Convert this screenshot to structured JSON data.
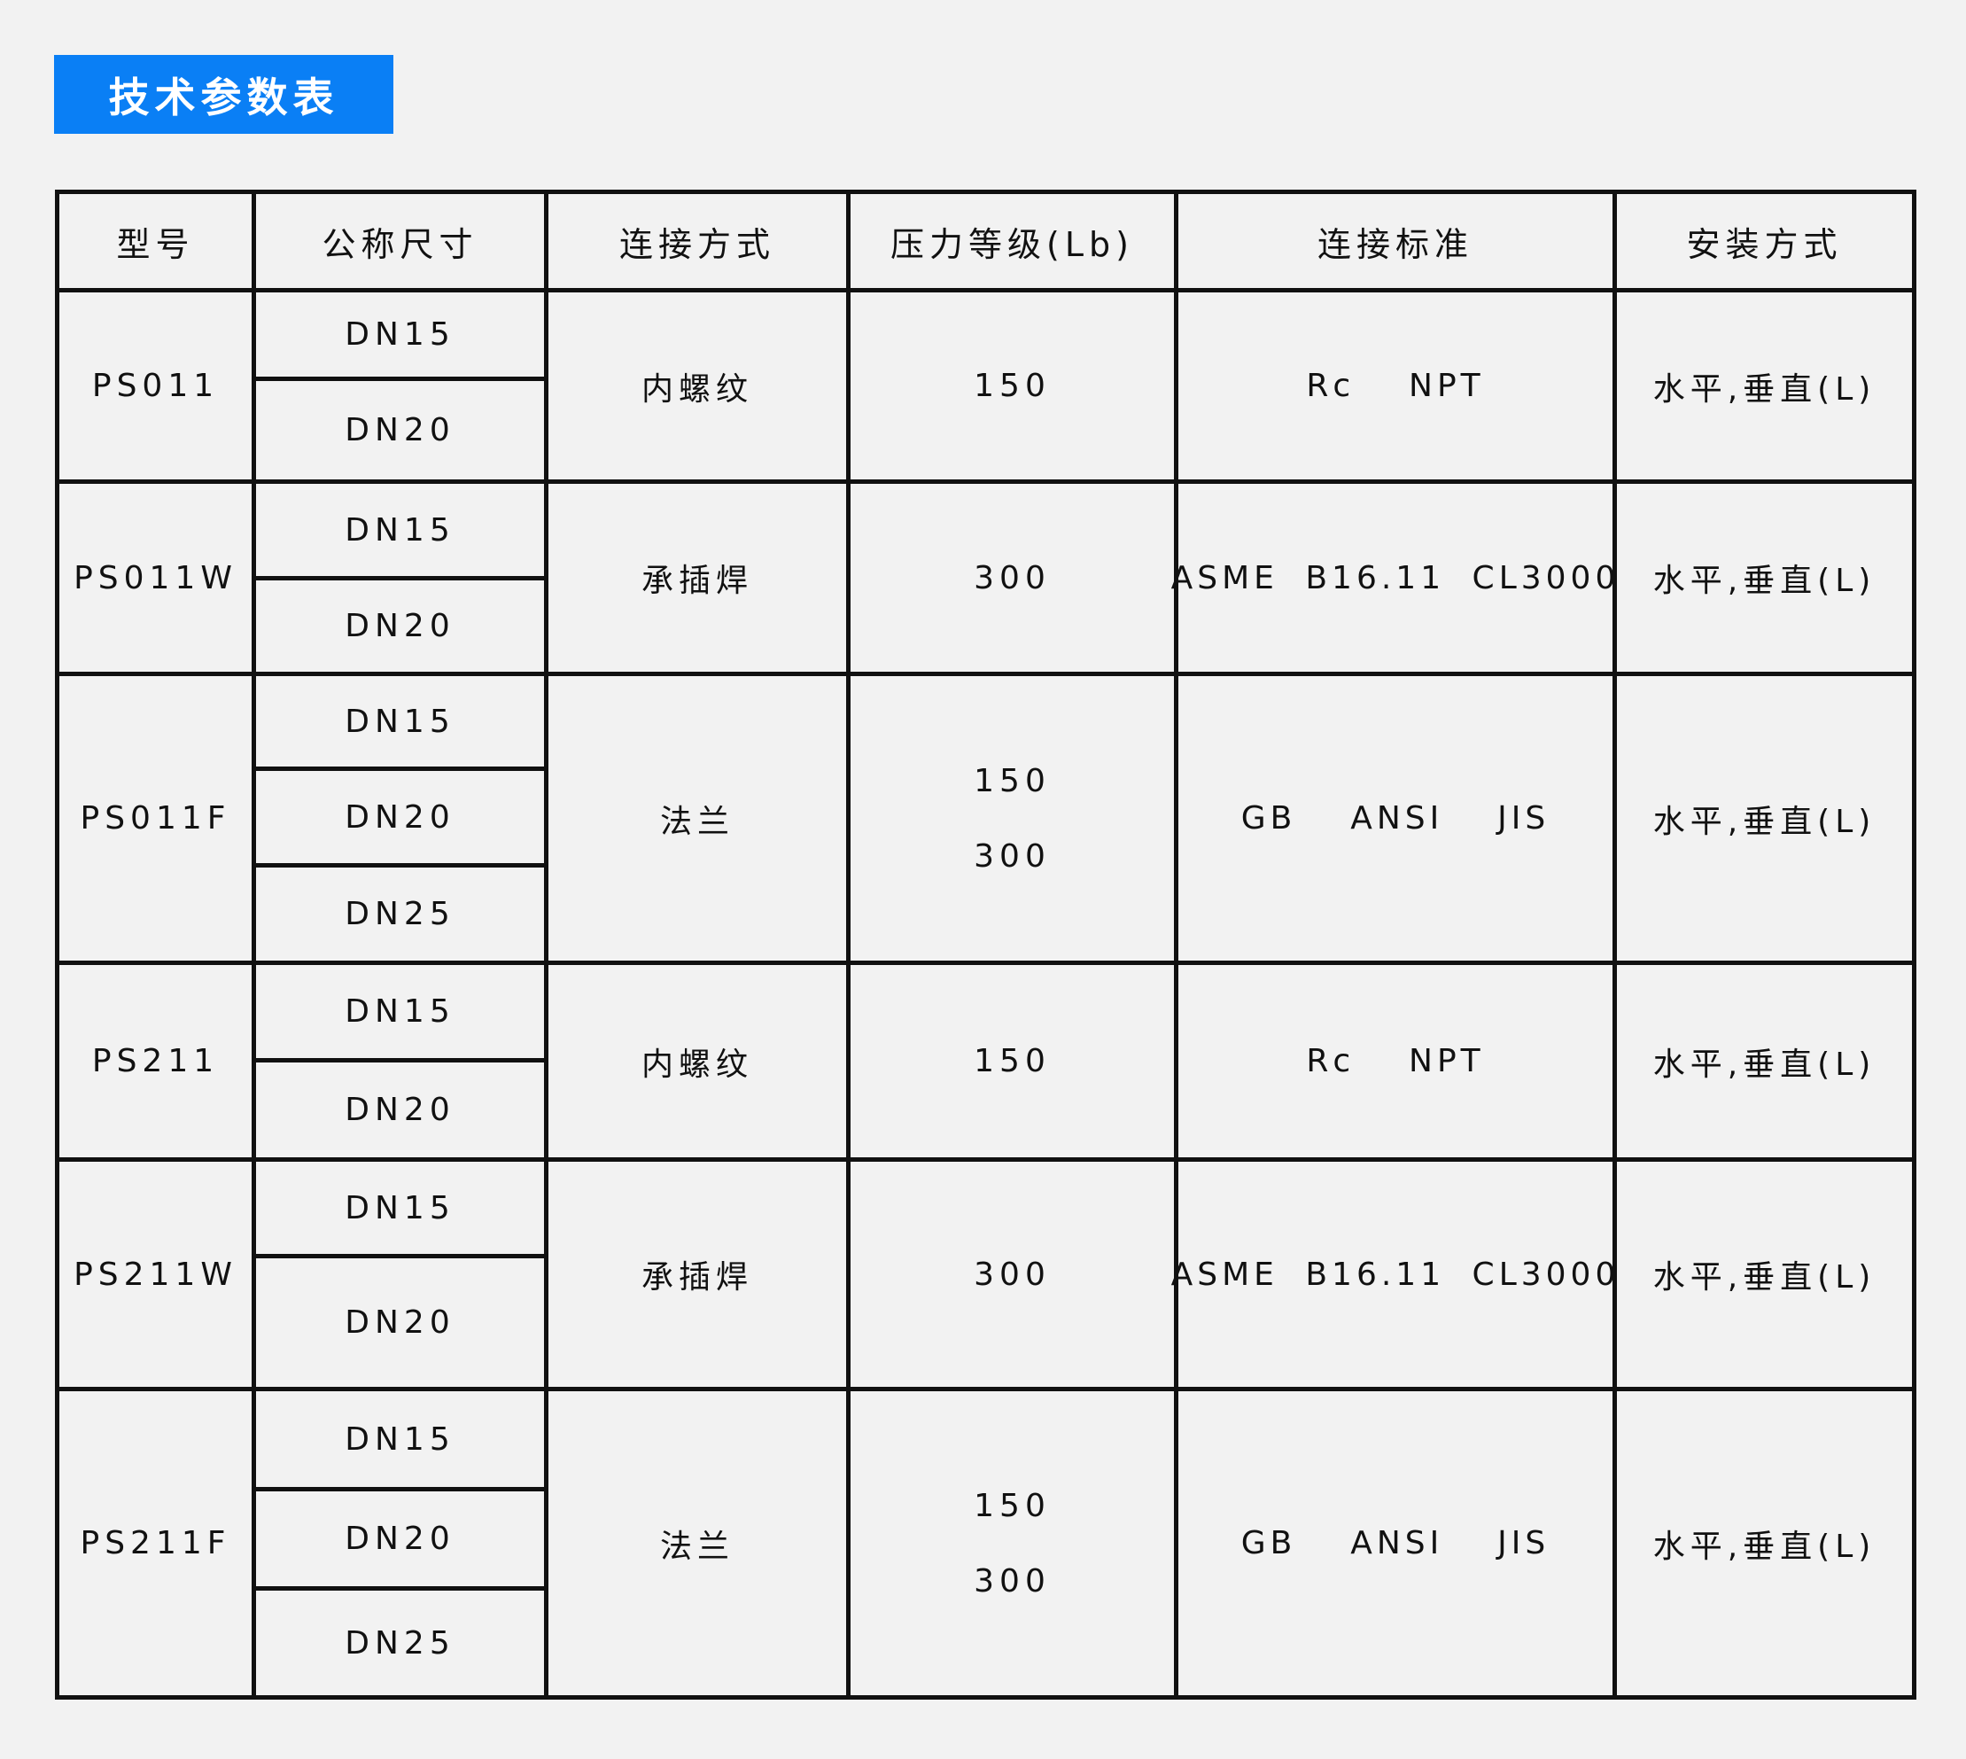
{
  "title": "技术参数表",
  "headers": [
    "型号",
    "公称尺寸",
    "连接方式",
    "压力等级(Lb)",
    "连接标准",
    "安装方式"
  ],
  "rows": [
    {
      "model": "PS011",
      "sizes": [
        "DN15",
        "DN20"
      ],
      "connection": "内螺纹",
      "pressure": [
        "150"
      ],
      "standard": "Rc  NPT",
      "install": "水平,垂直(L)"
    },
    {
      "model": "PS011W",
      "sizes": [
        "DN15",
        "DN20"
      ],
      "connection": "承插焊",
      "pressure": [
        "300"
      ],
      "standard": "ASME B16.11 CL3000",
      "install": "水平,垂直(L)"
    },
    {
      "model": "PS011F",
      "sizes": [
        "DN15",
        "DN20",
        "DN25"
      ],
      "connection": "法兰",
      "pressure": [
        "150",
        "300"
      ],
      "standard": "GB  ANSI  JIS",
      "install": "水平,垂直(L)"
    },
    {
      "model": "PS211",
      "sizes": [
        "DN15",
        "DN20"
      ],
      "connection": "内螺纹",
      "pressure": [
        "150"
      ],
      "standard": "Rc  NPT",
      "install": "水平,垂直(L)"
    },
    {
      "model": "PS211W",
      "sizes": [
        "DN15",
        "DN20"
      ],
      "connection": "承插焊",
      "pressure": [
        "300"
      ],
      "standard": "ASME B16.11 CL3000",
      "install": "水平,垂直(L)"
    },
    {
      "model": "PS211F",
      "sizes": [
        "DN15",
        "DN20",
        "DN25"
      ],
      "connection": "法兰",
      "pressure": [
        "150",
        "300"
      ],
      "standard": "GB  ANSI  JIS",
      "install": "水平,垂直(L)"
    }
  ],
  "colors": {
    "accent": "#0a7ff5",
    "background": "#f2f2f2",
    "border": "#111111"
  }
}
